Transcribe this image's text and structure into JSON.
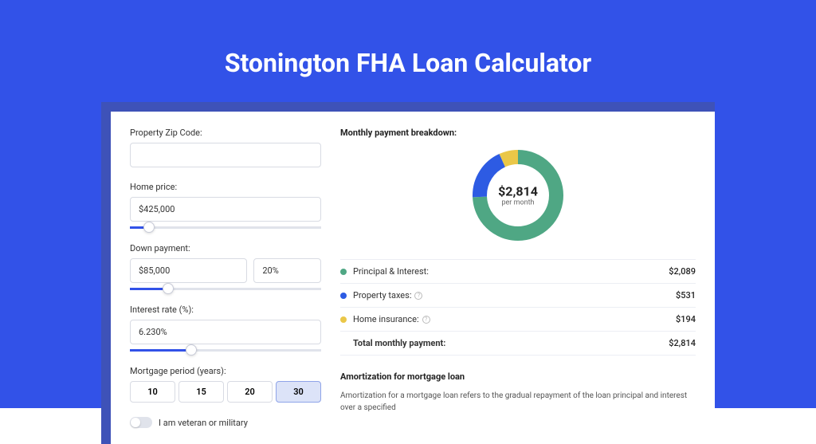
{
  "title": "Stonington FHA Loan Calculator",
  "form": {
    "zip": {
      "label": "Property Zip Code:",
      "value": ""
    },
    "home_price": {
      "label": "Home price:",
      "value": "$425,000",
      "slider_pct": 10
    },
    "down_payment": {
      "label": "Down payment:",
      "value": "$85,000",
      "pct_value": "20%",
      "slider_pct": 20
    },
    "interest_rate": {
      "label": "Interest rate (%):",
      "value": "6.230%",
      "slider_pct": 32
    },
    "mortgage_period": {
      "label": "Mortgage period (years):",
      "options": [
        "10",
        "15",
        "20",
        "30"
      ],
      "selected": "30"
    },
    "veteran": {
      "label": "I am veteran or military",
      "checked": false
    }
  },
  "breakdown": {
    "title": "Monthly payment breakdown:",
    "center_amount": "$2,814",
    "center_sub": "per month",
    "items": [
      {
        "label": "Principal & Interest:",
        "value": "$2,089",
        "color": "#4fa784",
        "info": false
      },
      {
        "label": "Property taxes:",
        "value": "$531",
        "color": "#2d5be3",
        "info": true
      },
      {
        "label": "Home insurance:",
        "value": "$194",
        "color": "#eac748",
        "info": true
      }
    ],
    "total": {
      "label": "Total monthly payment:",
      "value": "$2,814"
    },
    "donut": {
      "segments": [
        {
          "color": "#4fa784",
          "fraction": 0.742
        },
        {
          "color": "#2d5be3",
          "fraction": 0.189
        },
        {
          "color": "#eac748",
          "fraction": 0.069
        }
      ],
      "stroke_width": 18,
      "radius": 48
    }
  },
  "amortization": {
    "title": "Amortization for mortgage loan",
    "text": "Amortization for a mortgage loan refers to the gradual repayment of the loan principal and interest over a specified"
  },
  "colors": {
    "page_bg": "#3252e8",
    "panel_bg": "#ffffff",
    "shadow_bg": "#3e52b8"
  }
}
